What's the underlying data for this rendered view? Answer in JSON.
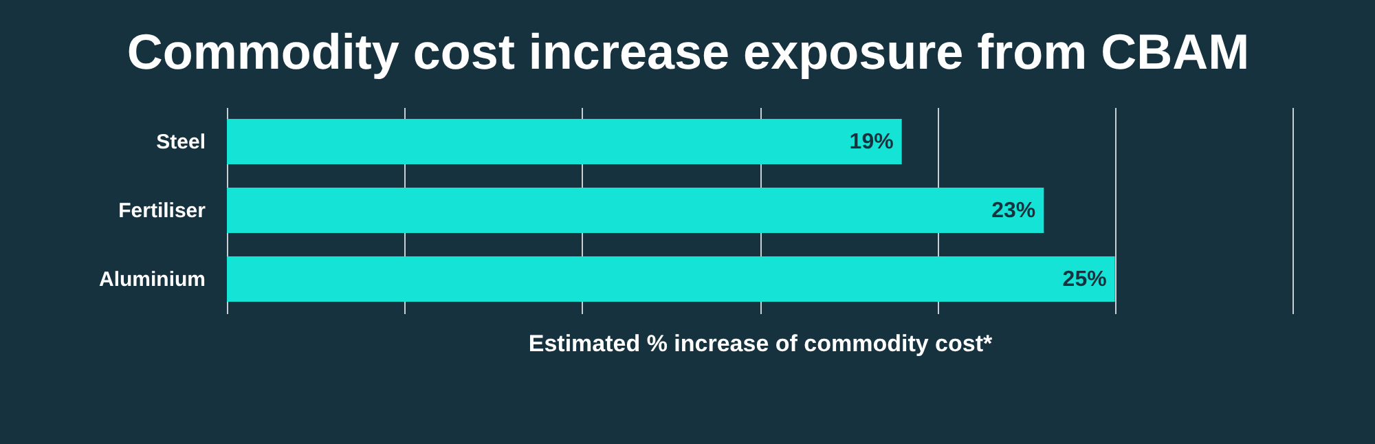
{
  "chart_data": {
    "type": "bar",
    "orientation": "horizontal",
    "title": "Commodity cost increase exposure from CBAM",
    "xlabel": "Estimated % increase of commodity cost*",
    "categories": [
      "Steel",
      "Fertiliser",
      "Aluminium"
    ],
    "values": [
      19,
      23,
      25
    ],
    "value_labels": [
      "19%",
      "23%",
      "25%"
    ],
    "color": "#14e3d5",
    "xlim": [
      0,
      30
    ],
    "xticks": [
      {
        "value": 0,
        "label": null
      },
      {
        "value": 5,
        "label": null
      },
      {
        "value": 10,
        "label": null
      },
      {
        "value": 15,
        "label": null
      },
      {
        "value": 20,
        "label": null
      },
      {
        "value": 25,
        "label": null
      },
      {
        "value": 30,
        "label": null
      }
    ],
    "grid": "x",
    "tick_labels": "y"
  }
}
